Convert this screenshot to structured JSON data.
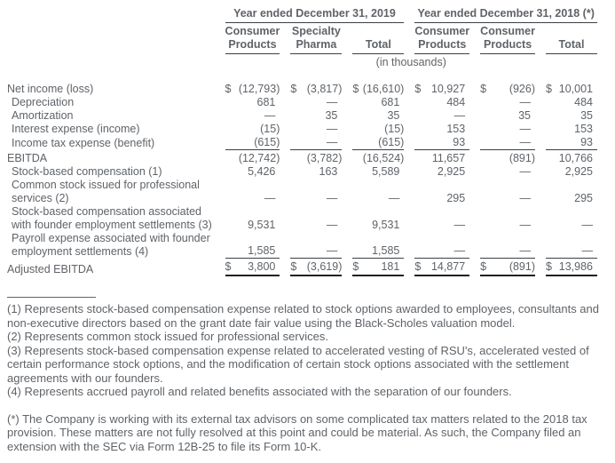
{
  "colors": {
    "text": "#5f6368",
    "rule": "#3c4043",
    "total_rule": "#202124",
    "background": "#ffffff"
  },
  "table": {
    "groups": [
      {
        "label": "Year ended December 31, 2019"
      },
      {
        "label": "Year ended December 31, 2018 (*)"
      }
    ],
    "columns": [
      "Consumer Products",
      "Specialty Pharma",
      "Total",
      "Consumer Products",
      "Consumer Products",
      "Total"
    ],
    "units_note": "(in thousands)",
    "rows": [
      {
        "label": "Net income (loss)",
        "indent": false,
        "dollar": true,
        "values": [
          "(12,793)",
          "(3,817)",
          "(16,610)",
          "10,927",
          "(926)",
          "10,001"
        ]
      },
      {
        "label": "Depreciation",
        "indent": true,
        "values": [
          "681",
          "—",
          "681",
          "484",
          "—",
          "484"
        ]
      },
      {
        "label": "Amortization",
        "indent": true,
        "values": [
          "—",
          "35",
          "35",
          "—",
          "35",
          "35"
        ]
      },
      {
        "label": "Interest expense (income)",
        "indent": true,
        "values": [
          "(15)",
          "—",
          "(15)",
          "153",
          "—",
          "153"
        ]
      },
      {
        "label": "Income tax expense (benefit)",
        "indent": true,
        "rule_below": true,
        "values": [
          "(615)",
          "—",
          "(615)",
          "93",
          "—",
          "93"
        ]
      },
      {
        "label": "EBITDA",
        "indent": false,
        "after_rule": true,
        "values": [
          "(12,742)",
          "(3,782)",
          "(16,524)",
          "11,657",
          "(891)",
          "10,766"
        ]
      },
      {
        "label": "Stock-based compensation (1)",
        "indent": true,
        "values": [
          "5,426",
          "163",
          "5,589",
          "2,925",
          "—",
          "2,925"
        ]
      },
      {
        "label": "Common stock issued for professional services (2)",
        "indent": true,
        "values": [
          "—",
          "—",
          "—",
          "295",
          "—",
          "295"
        ]
      },
      {
        "label": "Stock-based compensation associated with founder employment settlements (3)",
        "indent": true,
        "values": [
          "9,531",
          "—",
          "9,531",
          "—",
          "—",
          "—"
        ]
      },
      {
        "label": "Payroll expense associated with founder employment settlements (4)",
        "indent": true,
        "rule_below": true,
        "values": [
          "1,585",
          "—",
          "1,585",
          "—",
          "—",
          "—"
        ]
      },
      {
        "label": "Adjusted EBITDA",
        "indent": false,
        "dollar": true,
        "total": true,
        "after_rule": true,
        "values": [
          "3,800",
          "(3,619)",
          "181",
          "14,877",
          "(891)",
          "13,986"
        ]
      }
    ]
  },
  "footnotes": [
    "(1) Represents stock-based compensation expense related to stock options awarded to employees, consultants and non-executive directors based on the grant date fair value using the Black-Scholes valuation model.",
    "(2) Represents common stock issued for professional services.",
    "(3) Represents stock-based compensation expense related to accelerated vesting of RSU's, accelerated vested of certain performance stock options, and the modification of certain stock options associated with the settlement agreements with our founders.",
    "(4) Represents accrued payroll and related benefits associated with the separation of our founders."
  ],
  "star_note": "(*) The Company is working with its external tax advisors on some complicated tax matters related to the 2018 tax provision. These matters are not fully resolved at this point and could be material. As such, the Company filed an extension with the SEC via Form 12B-25 to file its Form 10-K."
}
